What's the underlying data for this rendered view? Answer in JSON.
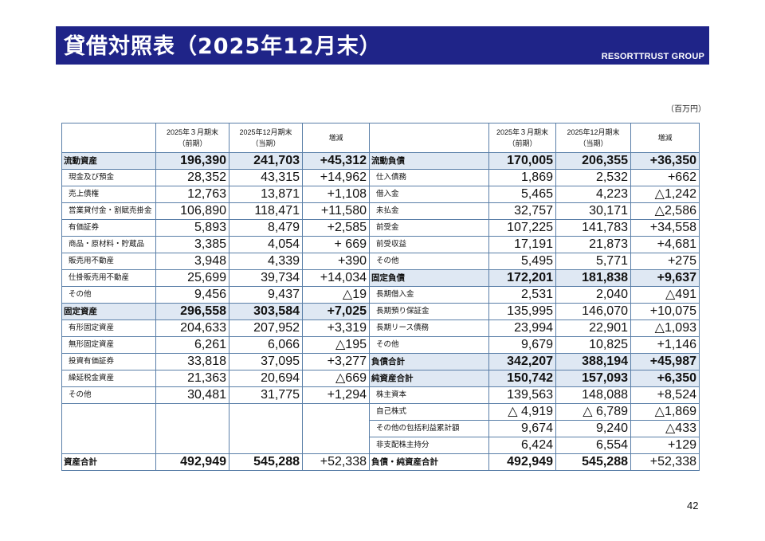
{
  "header": {
    "title": "貸借対照表（2025年12月末）",
    "brand": "RESORTTRUST GROUP"
  },
  "unit": "（百万円）",
  "columns": {
    "prev": [
      "2025年３月期末",
      "（前期）"
    ],
    "curr": [
      "2025年12月期末",
      "（当期）"
    ],
    "diff": "増減"
  },
  "rows": [
    {
      "left": {
        "label": "流動資産",
        "prev": "196,390",
        "curr": "241,703",
        "diff": "+45,312",
        "type": "sum"
      },
      "right": {
        "label": "流動負債",
        "prev": "170,005",
        "curr": "206,355",
        "diff": "+36,350",
        "type": "sum"
      }
    },
    {
      "left": {
        "label": "現金及び預金",
        "prev": "28,352",
        "curr": "43,315",
        "diff": "+14,962",
        "type": "item"
      },
      "right": {
        "label": "仕入債務",
        "prev": "1,869",
        "curr": "2,532",
        "diff": "+662",
        "type": "item"
      }
    },
    {
      "left": {
        "label": "売上債権",
        "prev": "12,763",
        "curr": "13,871",
        "diff": "+1,108",
        "type": "item"
      },
      "right": {
        "label": "借入金",
        "prev": "5,465",
        "curr": "4,223",
        "diff": "△1,242",
        "type": "item"
      }
    },
    {
      "left": {
        "label": "営業貸付金・割賦売掛金",
        "prev": "106,890",
        "curr": "118,471",
        "diff": "+11,580",
        "type": "item"
      },
      "right": {
        "label": "未払金",
        "prev": "32,757",
        "curr": "30,171",
        "diff": "△2,586",
        "type": "item"
      }
    },
    {
      "left": {
        "label": "有価証券",
        "prev": "5,893",
        "curr": "8,479",
        "diff": "+2,585",
        "type": "item"
      },
      "right": {
        "label": "前受金",
        "prev": "107,225",
        "curr": "141,783",
        "diff": "+34,558",
        "type": "item"
      }
    },
    {
      "left": {
        "label": "商品・原材料・貯蔵品",
        "prev": "3,385",
        "curr": "4,054",
        "diff": "+ 669",
        "type": "item"
      },
      "right": {
        "label": "前受収益",
        "prev": "17,191",
        "curr": "21,873",
        "diff": "+4,681",
        "type": "item"
      }
    },
    {
      "left": {
        "label": "販売用不動産",
        "prev": "3,948",
        "curr": "4,339",
        "diff": "+390",
        "type": "item"
      },
      "right": {
        "label": "その他",
        "prev": "5,495",
        "curr": "5,771",
        "diff": "+275",
        "type": "item"
      }
    },
    {
      "left": {
        "label": "仕掛販売用不動産",
        "prev": "25,699",
        "curr": "39,734",
        "diff": "+14,034",
        "type": "item"
      },
      "right": {
        "label": "固定負債",
        "prev": "172,201",
        "curr": "181,838",
        "diff": "+9,637",
        "type": "sum"
      }
    },
    {
      "left": {
        "label": "その他",
        "prev": "9,456",
        "curr": "9,437",
        "diff": "△19",
        "type": "item"
      },
      "right": {
        "label": "長期借入金",
        "prev": "2,531",
        "curr": "2,040",
        "diff": "△491",
        "type": "item"
      }
    },
    {
      "left": {
        "label": "固定資産",
        "prev": "296,558",
        "curr": "303,584",
        "diff": "+7,025",
        "type": "sum"
      },
      "right": {
        "label": "長期預り保証金",
        "prev": "135,995",
        "curr": "146,070",
        "diff": "+10,075",
        "type": "item"
      }
    },
    {
      "left": {
        "label": "有形固定資産",
        "prev": "204,633",
        "curr": "207,952",
        "diff": "+3,319",
        "type": "item"
      },
      "right": {
        "label": "長期リース債務",
        "prev": "23,994",
        "curr": "22,901",
        "diff": "△1,093",
        "type": "item"
      }
    },
    {
      "left": {
        "label": "無形固定資産",
        "prev": "6,261",
        "curr": "6,066",
        "diff": "△195",
        "type": "item"
      },
      "right": {
        "label": "その他",
        "prev": "9,679",
        "curr": "10,825",
        "diff": "+1,146",
        "type": "item"
      }
    },
    {
      "left": {
        "label": "投資有価証券",
        "prev": "33,818",
        "curr": "37,095",
        "diff": "+3,277",
        "type": "item"
      },
      "right": {
        "label": "負債合計",
        "prev": "342,207",
        "curr": "388,194",
        "diff": "+45,987",
        "type": "sum"
      }
    },
    {
      "left": {
        "label": "繰延税金資産",
        "prev": "21,363",
        "curr": "20,694",
        "diff": "△669",
        "type": "item"
      },
      "right": {
        "label": "純資産合計",
        "prev": "150,742",
        "curr": "157,093",
        "diff": "+6,350",
        "type": "sum"
      }
    },
    {
      "left": {
        "label": "その他",
        "prev": "30,481",
        "curr": "31,775",
        "diff": "+1,294",
        "type": "item"
      },
      "right": {
        "label": "株主資本",
        "prev": "139,563",
        "curr": "148,088",
        "diff": "+8,524",
        "type": "item"
      }
    }
  ],
  "extra_right": [
    {
      "label": "自己株式",
      "prev": "△ 4,919",
      "curr": "△ 6,789",
      "diff": "△1,869"
    },
    {
      "label": "その他の包括利益累計額",
      "prev": "9,674",
      "curr": "9,240",
      "diff": "△433"
    },
    {
      "label": "非支配株主持分",
      "prev": "6,424",
      "curr": "6,554",
      "diff": "+129"
    }
  ],
  "totals": {
    "left": {
      "label": "資産合計",
      "prev": "492,949",
      "curr": "545,288",
      "diff": "+52,338"
    },
    "right": {
      "label": "負債・純資産合計",
      "prev": "492,949",
      "curr": "545,288",
      "diff": "+52,338"
    }
  },
  "page_number": "42",
  "colors": {
    "title_bar": "#1f2488",
    "sum_row": "#dfe8f3",
    "border": "#5a7fa8"
  }
}
